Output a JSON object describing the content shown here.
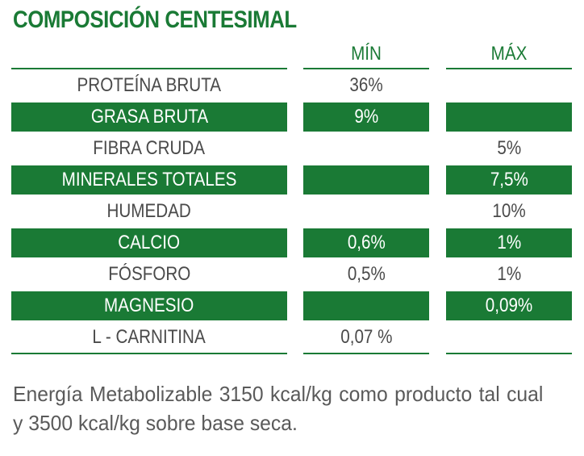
{
  "title": "COMPOSICIÓN CENTESIMAL",
  "headers": {
    "min": "MÍN",
    "max": "MÁX"
  },
  "colors": {
    "green": "#1a7a35",
    "text": "#4a4a4a"
  },
  "rows": [
    {
      "label": "PROTEÍNA BRUTA",
      "min": "36%",
      "max": "",
      "highlight": false
    },
    {
      "label": "GRASA BRUTA",
      "min": "9%",
      "max": "",
      "highlight": true
    },
    {
      "label": "FIBRA CRUDA",
      "min": "",
      "max": "5%",
      "highlight": false
    },
    {
      "label": "MINERALES TOTALES",
      "min": "",
      "max": "7,5%",
      "highlight": true
    },
    {
      "label": "HUMEDAD",
      "min": "",
      "max": "10%",
      "highlight": false
    },
    {
      "label": "CALCIO",
      "min": "0,6%",
      "max": "1%",
      "highlight": true
    },
    {
      "label": "FÓSFORO",
      "min": "0,5%",
      "max": "1%",
      "highlight": false
    },
    {
      "label": "MAGNESIO",
      "min": "",
      "max": "0,09%",
      "highlight": true
    },
    {
      "label": "L - CARNITINA",
      "min": "0,07 %",
      "max": "",
      "highlight": false
    }
  ],
  "footer": "Energía Metabolizable 3150 kcal/kg como producto tal cual y 3500 kcal/kg sobre base seca."
}
